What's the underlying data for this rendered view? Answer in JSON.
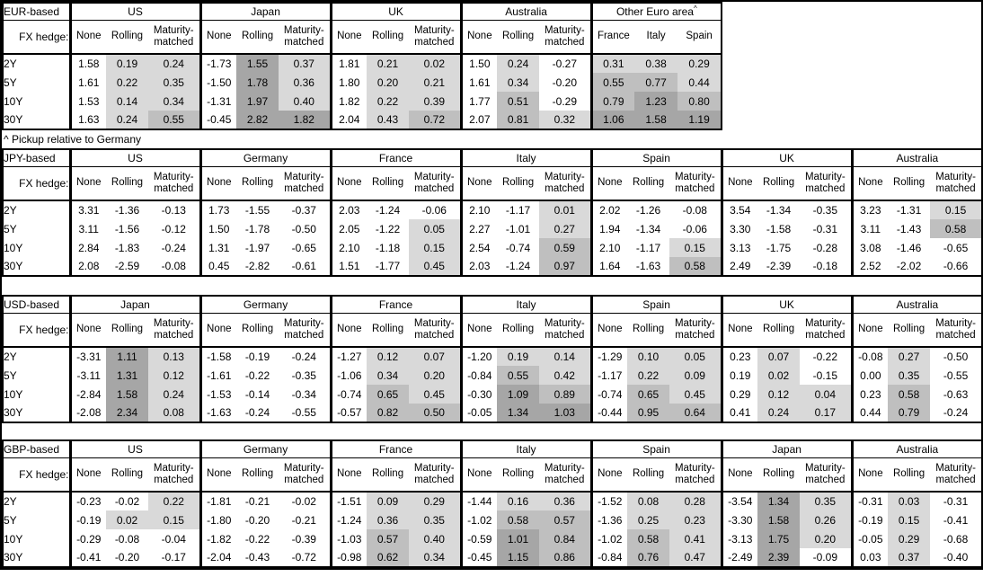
{
  "footnote": "^ Pickup relative to Germany",
  "hedge_label": "FX hedge:",
  "row_labels": [
    "2Y",
    "5Y",
    "10Y",
    "30Y"
  ],
  "default_hedge_cols": [
    "None",
    "Rolling",
    "Maturity-matched"
  ],
  "heatmap": {
    "light": "#D9D9D9",
    "medium": "#BFBFBF",
    "dark": "#A6A6A6",
    "rule": "hedged columns only: <0 white, 0-0.5 light, 0.5-1 medium, >=1 dark"
  },
  "tables": [
    {
      "id": "eur-based",
      "base_label": "EUR-based",
      "groups": [
        {
          "name": "US",
          "cols": [
            "None",
            "Rolling",
            "Maturity-matched"
          ],
          "shade_all": false,
          "rows": [
            [
              "1.58",
              "0.19",
              "0.24"
            ],
            [
              "1.61",
              "0.22",
              "0.35"
            ],
            [
              "1.53",
              "0.14",
              "0.34"
            ],
            [
              "1.63",
              "0.24",
              "0.55"
            ]
          ]
        },
        {
          "name": "Japan",
          "cols": [
            "None",
            "Rolling",
            "Maturity-matched"
          ],
          "shade_all": false,
          "rows": [
            [
              "-1.73",
              "1.55",
              "0.37"
            ],
            [
              "-1.50",
              "1.78",
              "0.36"
            ],
            [
              "-1.31",
              "1.97",
              "0.40"
            ],
            [
              "-0.45",
              "2.82",
              "1.82"
            ]
          ]
        },
        {
          "name": "UK",
          "cols": [
            "None",
            "Rolling",
            "Maturity-matched"
          ],
          "shade_all": false,
          "rows": [
            [
              "1.81",
              "0.21",
              "0.02"
            ],
            [
              "1.80",
              "0.20",
              "0.21"
            ],
            [
              "1.82",
              "0.22",
              "0.39"
            ],
            [
              "2.04",
              "0.43",
              "0.72"
            ]
          ]
        },
        {
          "name": "Australia",
          "cols": [
            "None",
            "Rolling",
            "Maturity-matched"
          ],
          "shade_all": false,
          "rows": [
            [
              "1.50",
              "0.24",
              "-0.27"
            ],
            [
              "1.61",
              "0.34",
              "-0.20"
            ],
            [
              "1.77",
              "0.51",
              "-0.29"
            ],
            [
              "2.07",
              "0.81",
              "0.32"
            ]
          ]
        },
        {
          "name": "Other Euro area",
          "sup": "^",
          "cols": [
            "France",
            "Italy",
            "Spain"
          ],
          "shade_all": true,
          "rows": [
            [
              "0.31",
              "0.38",
              "0.29"
            ],
            [
              "0.55",
              "0.77",
              "0.44"
            ],
            [
              "0.79",
              "1.23",
              "0.80"
            ],
            [
              "1.06",
              "1.58",
              "1.19"
            ]
          ]
        }
      ]
    },
    {
      "id": "jpy-based",
      "base_label": "JPY-based",
      "groups": [
        {
          "name": "US",
          "cols": [
            "None",
            "Rolling",
            "Maturity-matched"
          ],
          "shade_all": false,
          "rows": [
            [
              "3.31",
              "-1.36",
              "-0.13"
            ],
            [
              "3.11",
              "-1.56",
              "-0.12"
            ],
            [
              "2.84",
              "-1.83",
              "-0.24"
            ],
            [
              "2.08",
              "-2.59",
              "-0.08"
            ]
          ]
        },
        {
          "name": "Germany",
          "cols": [
            "None",
            "Rolling",
            "Maturity-matched"
          ],
          "shade_all": false,
          "rows": [
            [
              "1.73",
              "-1.55",
              "-0.37"
            ],
            [
              "1.50",
              "-1.78",
              "-0.50"
            ],
            [
              "1.31",
              "-1.97",
              "-0.65"
            ],
            [
              "0.45",
              "-2.82",
              "-0.61"
            ]
          ]
        },
        {
          "name": "France",
          "cols": [
            "None",
            "Rolling",
            "Maturity-matched"
          ],
          "shade_all": false,
          "rows": [
            [
              "2.03",
              "-1.24",
              "-0.06"
            ],
            [
              "2.05",
              "-1.22",
              "0.05"
            ],
            [
              "2.10",
              "-1.18",
              "0.15"
            ],
            [
              "1.51",
              "-1.77",
              "0.45"
            ]
          ]
        },
        {
          "name": "Italy",
          "cols": [
            "None",
            "Rolling",
            "Maturity-matched"
          ],
          "shade_all": false,
          "rows": [
            [
              "2.10",
              "-1.17",
              "0.01"
            ],
            [
              "2.27",
              "-1.01",
              "0.27"
            ],
            [
              "2.54",
              "-0.74",
              "0.59"
            ],
            [
              "2.03",
              "-1.24",
              "0.97"
            ]
          ]
        },
        {
          "name": "Spain",
          "cols": [
            "None",
            "Rolling",
            "Maturity-matched"
          ],
          "shade_all": false,
          "rows": [
            [
              "2.02",
              "-1.26",
              "-0.08"
            ],
            [
              "1.94",
              "-1.34",
              "-0.06"
            ],
            [
              "2.10",
              "-1.17",
              "0.15"
            ],
            [
              "1.64",
              "-1.63",
              "0.58"
            ]
          ]
        },
        {
          "name": "UK",
          "cols": [
            "None",
            "Rolling",
            "Maturity-matched"
          ],
          "shade_all": false,
          "rows": [
            [
              "3.54",
              "-1.34",
              "-0.35"
            ],
            [
              "3.30",
              "-1.58",
              "-0.31"
            ],
            [
              "3.13",
              "-1.75",
              "-0.28"
            ],
            [
              "2.49",
              "-2.39",
              "-0.18"
            ]
          ]
        },
        {
          "name": "Australia",
          "cols": [
            "None",
            "Rolling",
            "Maturity-matched"
          ],
          "shade_all": false,
          "rows": [
            [
              "3.23",
              "-1.31",
              "0.15"
            ],
            [
              "3.11",
              "-1.43",
              "0.58"
            ],
            [
              "3.08",
              "-1.46",
              "-0.65"
            ],
            [
              "2.52",
              "-2.02",
              "-0.66"
            ]
          ]
        }
      ]
    },
    {
      "id": "usd-based",
      "base_label": "USD-based",
      "groups": [
        {
          "name": "Japan",
          "cols": [
            "None",
            "Rolling",
            "Maturity-matched"
          ],
          "shade_all": false,
          "rows": [
            [
              "-3.31",
              "1.11",
              "0.13"
            ],
            [
              "-3.11",
              "1.31",
              "0.12"
            ],
            [
              "-2.84",
              "1.58",
              "0.24"
            ],
            [
              "-2.08",
              "2.34",
              "0.08"
            ]
          ]
        },
        {
          "name": "Germany",
          "cols": [
            "None",
            "Rolling",
            "Maturity-matched"
          ],
          "shade_all": false,
          "rows": [
            [
              "-1.58",
              "-0.19",
              "-0.24"
            ],
            [
              "-1.61",
              "-0.22",
              "-0.35"
            ],
            [
              "-1.53",
              "-0.14",
              "-0.34"
            ],
            [
              "-1.63",
              "-0.24",
              "-0.55"
            ]
          ]
        },
        {
          "name": "France",
          "cols": [
            "None",
            "Rolling",
            "Maturity-matched"
          ],
          "shade_all": false,
          "rows": [
            [
              "-1.27",
              "0.12",
              "0.07"
            ],
            [
              "-1.06",
              "0.34",
              "0.20"
            ],
            [
              "-0.74",
              "0.65",
              "0.45"
            ],
            [
              "-0.57",
              "0.82",
              "0.50"
            ]
          ]
        },
        {
          "name": "Italy",
          "cols": [
            "None",
            "Rolling",
            "Maturity-matched"
          ],
          "shade_all": false,
          "rows": [
            [
              "-1.20",
              "0.19",
              "0.14"
            ],
            [
              "-0.84",
              "0.55",
              "0.42"
            ],
            [
              "-0.30",
              "1.09",
              "0.89"
            ],
            [
              "-0.05",
              "1.34",
              "1.03"
            ]
          ]
        },
        {
          "name": "Spain",
          "cols": [
            "None",
            "Rolling",
            "Maturity-matched"
          ],
          "shade_all": false,
          "rows": [
            [
              "-1.29",
              "0.10",
              "0.05"
            ],
            [
              "-1.17",
              "0.22",
              "0.09"
            ],
            [
              "-0.74",
              "0.65",
              "0.45"
            ],
            [
              "-0.44",
              "0.95",
              "0.64"
            ]
          ]
        },
        {
          "name": "UK",
          "cols": [
            "None",
            "Rolling",
            "Maturity-matched"
          ],
          "shade_all": false,
          "rows": [
            [
              "0.23",
              "0.07",
              "-0.22"
            ],
            [
              "0.19",
              "0.02",
              "-0.15"
            ],
            [
              "0.29",
              "0.12",
              "0.04"
            ],
            [
              "0.41",
              "0.24",
              "0.17"
            ]
          ]
        },
        {
          "name": "Australia",
          "cols": [
            "None",
            "Rolling",
            "Maturity-matched"
          ],
          "shade_all": false,
          "rows": [
            [
              "-0.08",
              "0.27",
              "-0.50"
            ],
            [
              "0.00",
              "0.35",
              "-0.55"
            ],
            [
              "0.23",
              "0.58",
              "-0.63"
            ],
            [
              "0.44",
              "0.79",
              "-0.24"
            ]
          ]
        }
      ]
    },
    {
      "id": "gbp-based",
      "base_label": "GBP-based",
      "groups": [
        {
          "name": "US",
          "cols": [
            "None",
            "Rolling",
            "Maturity-matched"
          ],
          "shade_all": false,
          "rows": [
            [
              "-0.23",
              "-0.02",
              "0.22"
            ],
            [
              "-0.19",
              "0.02",
              "0.15"
            ],
            [
              "-0.29",
              "-0.08",
              "-0.04"
            ],
            [
              "-0.41",
              "-0.20",
              "-0.17"
            ]
          ]
        },
        {
          "name": "Germany",
          "cols": [
            "None",
            "Rolling",
            "Maturity-matched"
          ],
          "shade_all": false,
          "rows": [
            [
              "-1.81",
              "-0.21",
              "-0.02"
            ],
            [
              "-1.80",
              "-0.20",
              "-0.21"
            ],
            [
              "-1.82",
              "-0.22",
              "-0.39"
            ],
            [
              "-2.04",
              "-0.43",
              "-0.72"
            ]
          ]
        },
        {
          "name": "France",
          "cols": [
            "None",
            "Rolling",
            "Maturity-matched"
          ],
          "shade_all": false,
          "rows": [
            [
              "-1.51",
              "0.09",
              "0.29"
            ],
            [
              "-1.24",
              "0.36",
              "0.35"
            ],
            [
              "-1.03",
              "0.57",
              "0.40"
            ],
            [
              "-0.98",
              "0.62",
              "0.34"
            ]
          ]
        },
        {
          "name": "Italy",
          "cols": [
            "None",
            "Rolling",
            "Maturity-matched"
          ],
          "shade_all": false,
          "rows": [
            [
              "-1.44",
              "0.16",
              "0.36"
            ],
            [
              "-1.02",
              "0.58",
              "0.57"
            ],
            [
              "-0.59",
              "1.01",
              "0.84"
            ],
            [
              "-0.45",
              "1.15",
              "0.86"
            ]
          ]
        },
        {
          "name": "Spain",
          "cols": [
            "None",
            "Rolling",
            "Maturity-matched"
          ],
          "shade_all": false,
          "rows": [
            [
              "-1.52",
              "0.08",
              "0.28"
            ],
            [
              "-1.36",
              "0.25",
              "0.23"
            ],
            [
              "-1.02",
              "0.58",
              "0.41"
            ],
            [
              "-0.84",
              "0.76",
              "0.47"
            ]
          ]
        },
        {
          "name": "Japan",
          "cols": [
            "None",
            "Rolling",
            "Maturity-matched"
          ],
          "shade_all": false,
          "rows": [
            [
              "-3.54",
              "1.34",
              "0.35"
            ],
            [
              "-3.30",
              "1.58",
              "0.26"
            ],
            [
              "-3.13",
              "1.75",
              "0.20"
            ],
            [
              "-2.49",
              "2.39",
              "-0.09"
            ]
          ]
        },
        {
          "name": "Australia",
          "cols": [
            "None",
            "Rolling",
            "Maturity-matched"
          ],
          "shade_all": false,
          "rows": [
            [
              "-0.31",
              "0.03",
              "-0.31"
            ],
            [
              "-0.19",
              "0.15",
              "-0.41"
            ],
            [
              "-0.05",
              "0.29",
              "-0.68"
            ],
            [
              "0.03",
              "0.37",
              "-0.40"
            ]
          ]
        }
      ]
    }
  ]
}
